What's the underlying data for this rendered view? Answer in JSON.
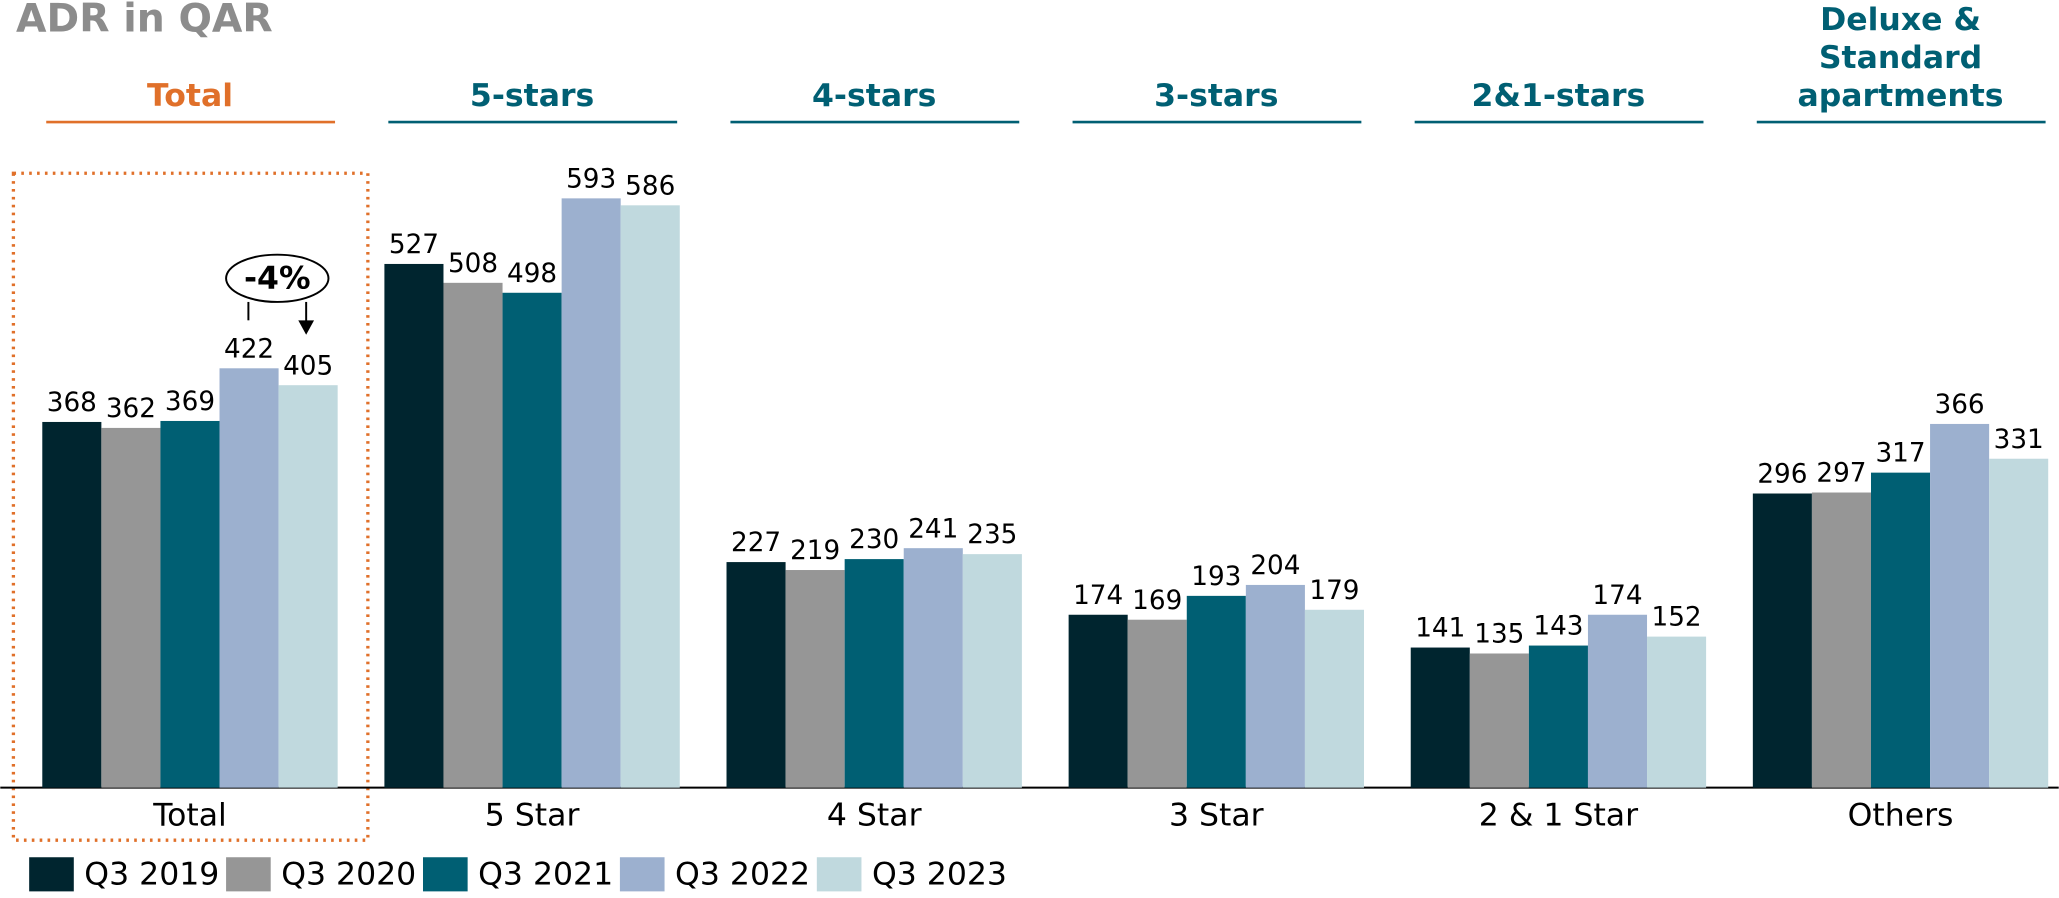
{
  "chart_data": {
    "type": "bar",
    "title": "ADR in QAR",
    "headers": [
      [
        "Total"
      ],
      [
        "5-stars"
      ],
      [
        "4-stars"
      ],
      [
        "3-stars"
      ],
      [
        "2&1-stars"
      ],
      [
        "Deluxe &",
        "Standard",
        "apartments"
      ]
    ],
    "header_colors": [
      "#e0702a",
      "#005f73",
      "#005f73",
      "#005f73",
      "#005f73",
      "#005f73"
    ],
    "categories": [
      "Total",
      "5 Star",
      "4 Star",
      "3 Star",
      "2 & 1 Star",
      "Others"
    ],
    "series": [
      {
        "name": "Q3 2019",
        "color": "#00252f",
        "values": [
          368,
          527,
          227,
          174,
          141,
          296
        ]
      },
      {
        "name": "Q3 2020",
        "color": "#969696",
        "values": [
          362,
          508,
          219,
          169,
          135,
          297
        ]
      },
      {
        "name": "Q3 2021",
        "color": "#005f73",
        "values": [
          369,
          498,
          230,
          193,
          143,
          317
        ]
      },
      {
        "name": "Q3 2022",
        "color": "#9cb0cf",
        "values": [
          422,
          593,
          241,
          204,
          174,
          366
        ]
      },
      {
        "name": "Q3 2023",
        "color": "#c0d9de",
        "values": [
          405,
          586,
          235,
          179,
          152,
          331
        ]
      }
    ],
    "annotation": "-4%"
  }
}
